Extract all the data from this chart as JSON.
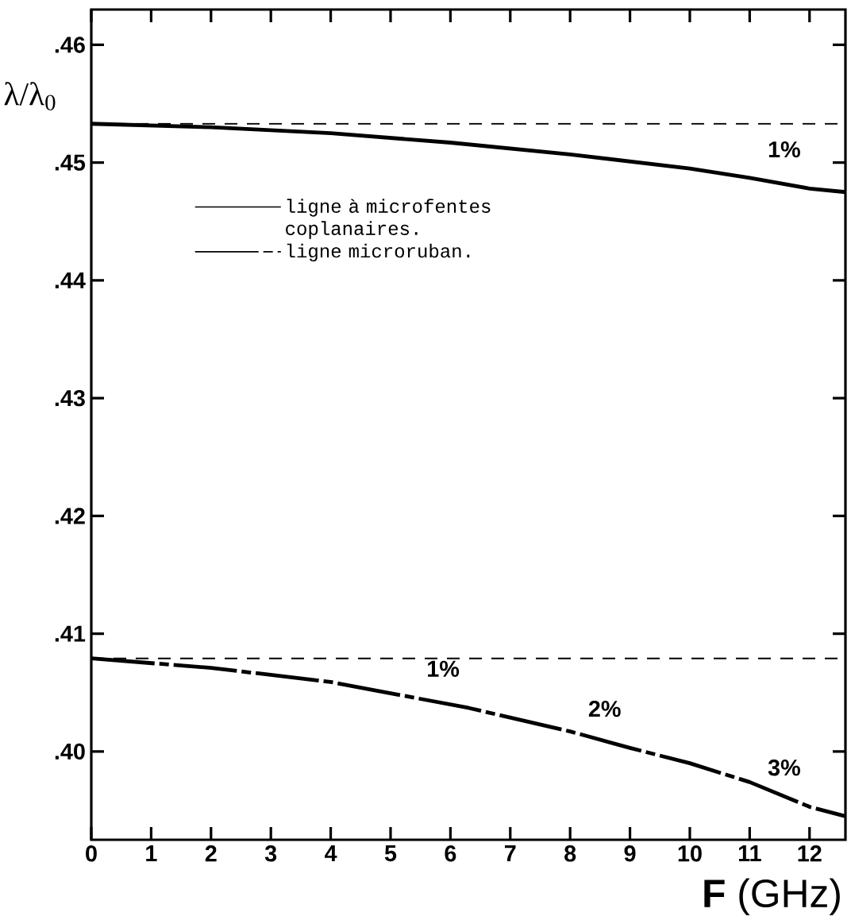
{
  "chart_data": {
    "type": "line",
    "xlabel": "**F** (GHz)",
    "ylabel": "λ/λ$_{0}$",
    "xlim": [
      0,
      12.6
    ],
    "ylim": [
      0.3925,
      0.463
    ],
    "xticks": [
      0,
      1,
      2,
      3,
      4,
      5,
      6,
      7,
      8,
      9,
      10,
      11,
      12
    ],
    "yticks": [
      {
        "value": 0.4,
        "label": ".40"
      },
      {
        "value": 0.41,
        "label": ".41"
      },
      {
        "value": 0.42,
        "label": ".42"
      },
      {
        "value": 0.43,
        "label": ".43"
      },
      {
        "value": 0.44,
        "label": ".44"
      },
      {
        "value": 0.45,
        "label": ".45"
      },
      {
        "value": 0.46,
        "label": ".46"
      }
    ],
    "series": [
      {
        "name": "ligne à microfentes coplanaires.",
        "color": "#000000",
        "line_style": "solid",
        "x": [
          0,
          2,
          4,
          6,
          8,
          10,
          11,
          12,
          12.6
        ],
        "values": [
          0.4533,
          0.453,
          0.4525,
          0.4517,
          0.4507,
          0.4495,
          0.4487,
          0.4478,
          0.4475
        ]
      },
      {
        "name": "ligne microruban.",
        "color": "#000000",
        "line_style": "dashed",
        "x": [
          0,
          2,
          4,
          6.3,
          8,
          9,
          10,
          11,
          12,
          12.6
        ],
        "values": [
          0.4079,
          0.4071,
          0.4059,
          0.4037,
          0.4017,
          0.4003,
          0.399,
          0.3974,
          0.3953,
          0.3945
        ]
      }
    ],
    "ref_lines": [
      {
        "axis": "y",
        "value": 0.4533,
        "line_style": "dashed",
        "color": "#000000"
      },
      {
        "axis": "y",
        "value": 0.4079,
        "line_style": "dashed",
        "color": "#000000"
      }
    ],
    "annotations": [
      {
        "text": "1%",
        "x": 12,
        "y": 0.4478
      },
      {
        "text": "1%",
        "x": 6.3,
        "y": 0.4037
      },
      {
        "text": "2%",
        "x": 9,
        "y": 0.4003
      },
      {
        "text": "3%",
        "x": 12,
        "y": 0.3953
      }
    ],
    "legend": "left",
    "grid": false
  }
}
